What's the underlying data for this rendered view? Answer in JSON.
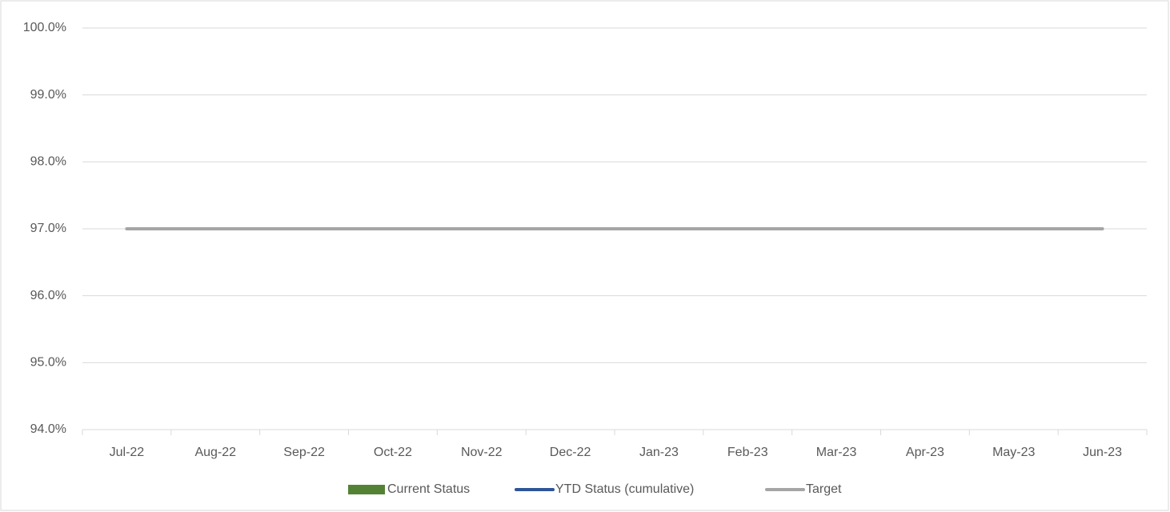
{
  "chart_data": {
    "type": "combo",
    "categories": [
      "Jul-22",
      "Aug-22",
      "Sep-22",
      "Oct-22",
      "Nov-22",
      "Dec-22",
      "Jan-23",
      "Feb-23",
      "Mar-23",
      "Apr-23",
      "May-23",
      "Jun-23"
    ],
    "series": [
      {
        "name": "Current Status",
        "type": "bar",
        "color": "#548235",
        "values": [
          null,
          null,
          null,
          null,
          null,
          null,
          null,
          null,
          null,
          null,
          null,
          null
        ]
      },
      {
        "name": "YTD Status (cumulative)",
        "type": "line",
        "color": "#2f5597",
        "values": [
          null,
          null,
          null,
          null,
          null,
          null,
          null,
          null,
          null,
          null,
          null,
          null
        ]
      },
      {
        "name": "Target",
        "type": "line",
        "color": "#a5a5a5",
        "values": [
          97,
          97,
          97,
          97,
          97,
          97,
          97,
          97,
          97,
          97,
          97,
          97
        ]
      }
    ],
    "ylim": [
      94,
      100
    ],
    "yticks": [
      {
        "value": 94,
        "label": "94.0%"
      },
      {
        "value": 95,
        "label": "95.0%"
      },
      {
        "value": 96,
        "label": "96.0%"
      },
      {
        "value": 97,
        "label": "97.0%"
      },
      {
        "value": 98,
        "label": "98.0%"
      },
      {
        "value": 99,
        "label": "99.0%"
      },
      {
        "value": 100,
        "label": "100.0%"
      }
    ],
    "grid": true,
    "legend": "bottom"
  }
}
